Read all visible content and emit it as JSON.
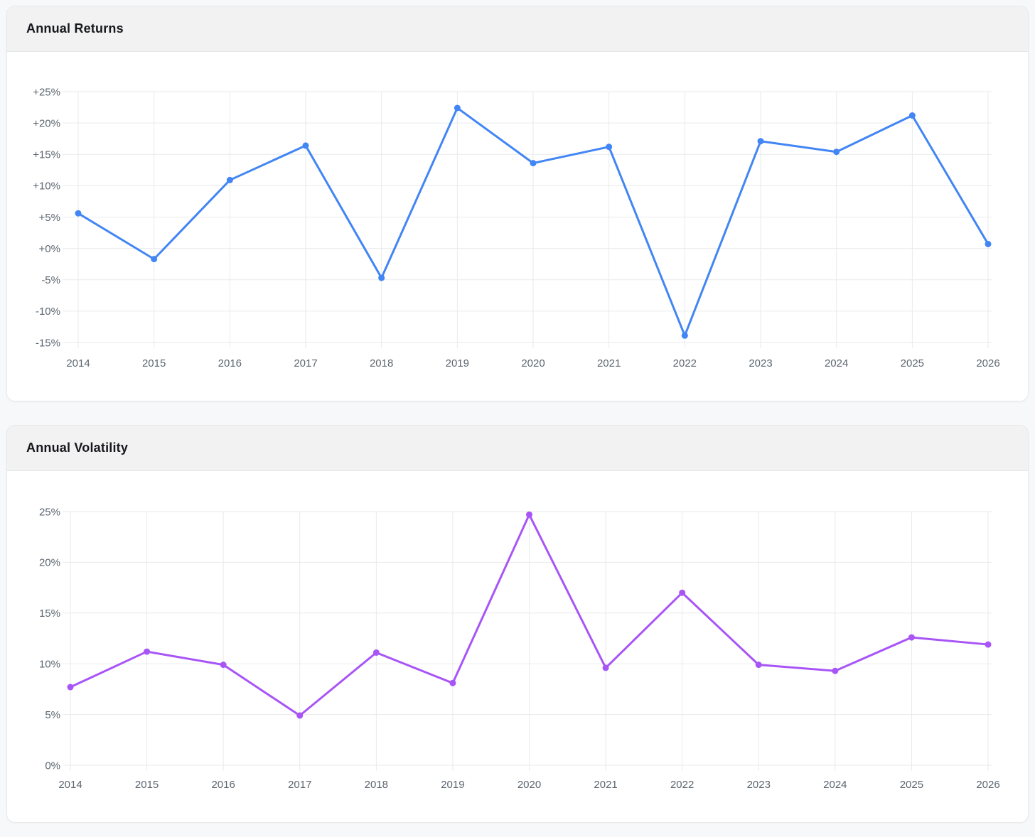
{
  "cards": [
    {
      "title": "Annual Returns"
    },
    {
      "title": "Annual Volatility"
    }
  ],
  "chart_data": [
    {
      "type": "line",
      "title": "Annual Returns",
      "categories": [
        "2014",
        "2015",
        "2016",
        "2017",
        "2018",
        "2019",
        "2020",
        "2021",
        "2022",
        "2023",
        "2024",
        "2025",
        "2026"
      ],
      "values": [
        5.6,
        -1.7,
        10.9,
        16.4,
        -4.7,
        22.4,
        13.6,
        16.2,
        -13.9,
        17.1,
        15.4,
        21.2,
        0.7
      ],
      "unit": "%",
      "xlabel": "",
      "ylabel": "",
      "ylim": [
        -15,
        25
      ],
      "ytick_values": [
        25,
        20,
        15,
        10,
        5,
        0,
        -5,
        -10,
        -15
      ],
      "ytick_labels": [
        "+25%",
        "+20%",
        "+15%",
        "+10%",
        "+5%",
        "+0%",
        "-5%",
        "-10%",
        "-15%"
      ],
      "grid": true,
      "legend": "none",
      "line_color": "#4285f4",
      "point_color": "#4285f4"
    },
    {
      "type": "line",
      "title": "Annual Volatility",
      "categories": [
        "2014",
        "2015",
        "2016",
        "2017",
        "2018",
        "2019",
        "2020",
        "2021",
        "2022",
        "2023",
        "2024",
        "2025",
        "2026"
      ],
      "values": [
        7.7,
        11.2,
        9.9,
        4.9,
        11.1,
        8.1,
        24.7,
        9.6,
        17.0,
        9.9,
        9.3,
        12.6,
        11.9
      ],
      "unit": "%",
      "xlabel": "",
      "ylabel": "",
      "ylim": [
        0,
        25
      ],
      "ytick_values": [
        25,
        20,
        15,
        10,
        5,
        0
      ],
      "ytick_labels": [
        "25%",
        "20%",
        "15%",
        "10%",
        "5%",
        "0%"
      ],
      "grid": true,
      "legend": "none",
      "line_color": "#a855f7",
      "point_color": "#a855f7"
    }
  ],
  "colors": {
    "page_bg": "#f7f8f9",
    "card_bg": "#ffffff",
    "header_bg": "#f2f2f3",
    "card_border": "#e7e9ea",
    "grid_line": "#e9eaeb",
    "tick_text": "#5c6670",
    "returns_line": "#4285f4",
    "volatility_line": "#a855f7"
  }
}
